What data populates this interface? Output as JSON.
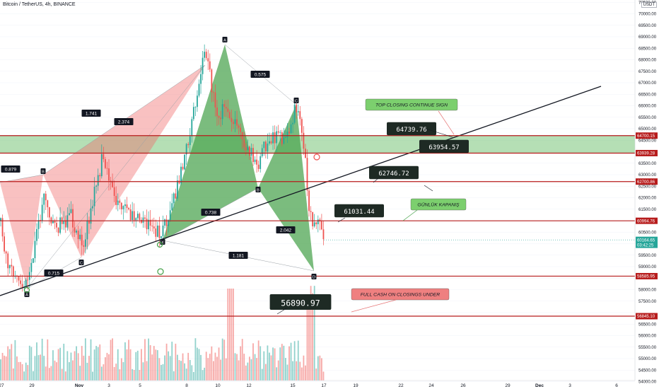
{
  "header": {
    "title": "Bitcoin / TetherUS, 4h, BINANCE",
    "currency": "USDT"
  },
  "colors": {
    "bull": "#26a69a",
    "bear": "#ef5350",
    "harmonic_green": "#43a047",
    "harmonic_red": "#f06b6b",
    "zone": "#5cb85c",
    "trend": "#131722",
    "level": "#b71c1c",
    "callout_green": "#7ccf6e",
    "callout_red": "#ef8080",
    "box_dark": "#1e2a24"
  },
  "chart_data": {
    "type": "candlestick",
    "instrument": "BTCUSDT",
    "timeframe": "4h",
    "ylim": [
      53800,
      70600
    ],
    "y_ticks": [
      54000,
      54500,
      55000,
      55500,
      56000,
      56500,
      57000,
      57500,
      58000,
      58500,
      59000,
      59500,
      60000,
      60500,
      61000,
      61500,
      62000,
      62500,
      63000,
      63500,
      64000,
      64500,
      65000,
      65500,
      66000,
      66500,
      67000,
      67500,
      68000,
      68500,
      69000,
      69500,
      70000,
      70500
    ],
    "x_ticks": [
      "27",
      "29",
      "Nov",
      "3",
      "5",
      "8",
      "10",
      "12",
      "15",
      "17",
      "19",
      "22",
      "24",
      "26",
      "29",
      "Dec",
      "3",
      "6"
    ],
    "price_tags": [
      {
        "value": "64700.15",
        "color": "#b71c1c"
      },
      {
        "value": "63939.28",
        "color": "#b71c1c"
      },
      {
        "value": "62700.86",
        "color": "#b71c1c"
      },
      {
        "value": "60994.76",
        "color": "#b71c1c"
      },
      {
        "value": "60164.65",
        "color": "#26a69a"
      },
      {
        "value": "03:42:25",
        "color": "#26a69a"
      },
      {
        "value": "58585.95",
        "color": "#b71c1c"
      },
      {
        "value": "56845.10",
        "color": "#b71c1c"
      }
    ],
    "levels": [
      64700.15,
      63939.28,
      62700.86,
      60994.76,
      58585.95,
      56845.1
    ],
    "zone": [
      63939.28,
      64700.15
    ],
    "current_price": 60164.65,
    "price_boxes": [
      "64739.76",
      "63954.57",
      "62746.72",
      "61031.44",
      "56890.97"
    ],
    "callouts": [
      "TOP CLOSING CONTINUE SIGN",
      "GÜNLÜK KAPANIŞ",
      "FULL CASH ON CLOSINGS UNDER"
    ],
    "ratios": [
      "0.879",
      "1.741",
      "2.374",
      "0.715",
      "0.575",
      "0.738",
      "2.042",
      "1.181"
    ],
    "pattern_points": [
      "A",
      "B",
      "C",
      "X",
      "A",
      "B",
      "C",
      "D"
    ]
  }
}
